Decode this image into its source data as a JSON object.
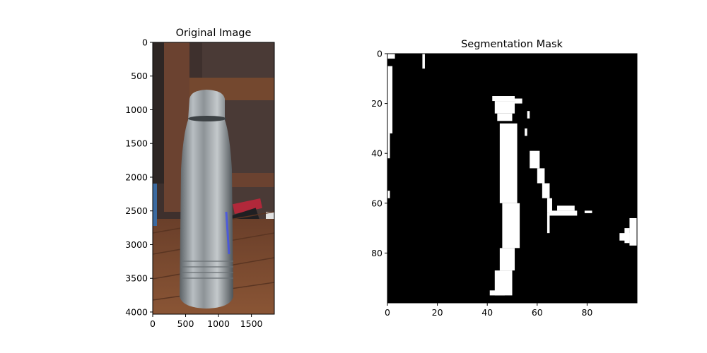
{
  "chart_data": [
    {
      "type": "image",
      "title": "Original Image",
      "subject": "stainless steel water bottle on wooden table",
      "xlim": [
        0,
        1848
      ],
      "ylim": [
        4032,
        0
      ],
      "x_ticks": [
        0,
        500,
        1000,
        1500
      ],
      "y_ticks": [
        0,
        500,
        1000,
        1500,
        2000,
        2500,
        3000,
        3500,
        4000
      ],
      "colors": {
        "background": "#4a3a36",
        "shelf": "#6b4230",
        "table": "#7a4a30",
        "bottle": "#9aa0a4"
      }
    },
    {
      "type": "heatmap",
      "title": "Segmentation Mask",
      "xlim": [
        0,
        100
      ],
      "ylim": [
        100,
        0
      ],
      "x_ticks": [
        0,
        20,
        40,
        60,
        80
      ],
      "y_ticks": [
        0,
        20,
        40,
        60,
        80
      ],
      "colormap": [
        "#000000",
        "#ffffff"
      ],
      "white_regions": [
        {
          "x": [
            0,
            3
          ],
          "y": [
            0,
            2
          ]
        },
        {
          "x": [
            14,
            15
          ],
          "y": [
            0,
            6
          ]
        },
        {
          "x": [
            0,
            2
          ],
          "y": [
            5,
            32
          ]
        },
        {
          "x": [
            0,
            1
          ],
          "y": [
            32,
            42
          ]
        },
        {
          "x": [
            0,
            1
          ],
          "y": [
            55,
            58
          ]
        },
        {
          "x": [
            42,
            51
          ],
          "y": [
            17,
            19
          ]
        },
        {
          "x": [
            51,
            54
          ],
          "y": [
            18,
            20
          ]
        },
        {
          "x": [
            43,
            51
          ],
          "y": [
            19,
            24
          ]
        },
        {
          "x": [
            44,
            50
          ],
          "y": [
            24,
            27
          ]
        },
        {
          "x": [
            56,
            57
          ],
          "y": [
            23,
            26
          ]
        },
        {
          "x": [
            55,
            56
          ],
          "y": [
            30,
            33
          ]
        },
        {
          "x": [
            45,
            52
          ],
          "y": [
            28,
            60
          ]
        },
        {
          "x": [
            46,
            53
          ],
          "y": [
            60,
            78
          ]
        },
        {
          "x": [
            45,
            51
          ],
          "y": [
            78,
            87
          ]
        },
        {
          "x": [
            43,
            50
          ],
          "y": [
            87,
            97
          ]
        },
        {
          "x": [
            41,
            47
          ],
          "y": [
            95,
            97
          ]
        },
        {
          "x": [
            57,
            61
          ],
          "y": [
            39,
            46
          ]
        },
        {
          "x": [
            60,
            63
          ],
          "y": [
            46,
            52
          ]
        },
        {
          "x": [
            62,
            65
          ],
          "y": [
            52,
            58
          ]
        },
        {
          "x": [
            64,
            66
          ],
          "y": [
            58,
            64
          ]
        },
        {
          "x": [
            64,
            65
          ],
          "y": [
            64,
            72
          ]
        },
        {
          "x": [
            65,
            76
          ],
          "y": [
            63,
            65
          ]
        },
        {
          "x": [
            68,
            75
          ],
          "y": [
            61,
            63
          ]
        },
        {
          "x": [
            79,
            82
          ],
          "y": [
            63,
            64
          ]
        },
        {
          "x": [
            97,
            100
          ],
          "y": [
            66,
            77
          ]
        },
        {
          "x": [
            93,
            97
          ],
          "y": [
            72,
            75
          ]
        },
        {
          "x": [
            95,
            97
          ],
          "y": [
            70,
            76
          ]
        }
      ]
    }
  ]
}
